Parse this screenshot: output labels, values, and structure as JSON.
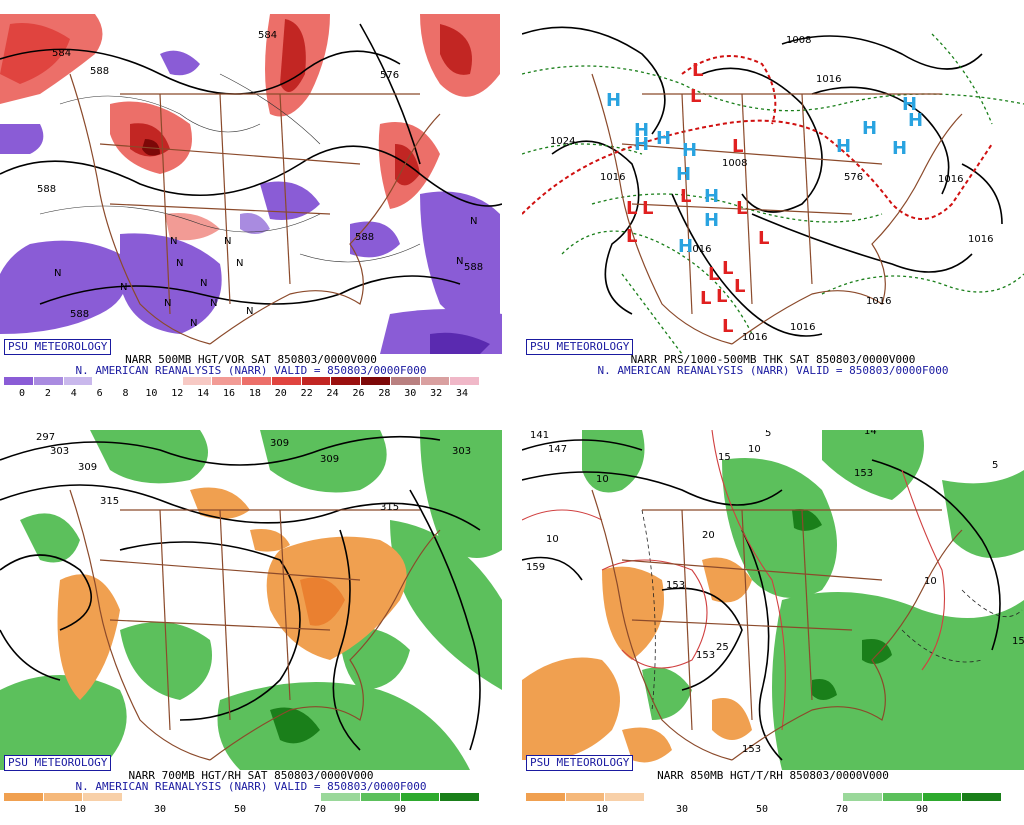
{
  "badge": "PSU METEOROLOGY",
  "panels": [
    {
      "title": "NARR 500MB HGT/VOR SAT 850803/0000V000",
      "subtitle": "N. AMERICAN REANALYSIS (NARR) VALID = 850803/0000F000",
      "colorbar": {
        "colors": [
          "#8a5cd6",
          "#a98be0",
          "#c9b8ec",
          "#ffffff",
          "#ffffff",
          "#ffffff",
          "#f7c9c4",
          "#f29b95",
          "#ec6f69",
          "#e0443f",
          "#c22623",
          "#9b100f",
          "#7d0808",
          "#b98080",
          "#d9a0a0",
          "#f0b8c8"
        ],
        "labels": [
          "0",
          "2",
          "4",
          "6",
          "8",
          "10",
          "12",
          "14",
          "16",
          "18",
          "20",
          "22",
          "24",
          "26",
          "28",
          "30",
          "32",
          "34"
        ]
      },
      "contour_labels": [
        "584",
        "584",
        "576",
        "588",
        "588",
        "588",
        "588",
        "588"
      ],
      "marks": [
        "N",
        "N",
        "N",
        "N",
        "N",
        "N",
        "N",
        "N",
        "N",
        "N",
        "N",
        "N",
        "N"
      ]
    },
    {
      "title": "NARR PRS/1000-500MB THK SAT 850803/0000V000",
      "subtitle": "N. AMERICAN REANALYSIS (NARR) VALID = 850803/0000F000",
      "contour_labels": [
        "1008",
        "1016",
        "1024",
        "1016",
        "1008",
        "1016",
        "1016",
        "1016",
        "1016",
        "1016",
        "1016",
        "576"
      ],
      "highs": [
        "H",
        "H",
        "H",
        "H",
        "H",
        "H",
        "H",
        "H",
        "H",
        "H",
        "H",
        "H",
        "H",
        "H"
      ],
      "lows": [
        "L",
        "L",
        "L",
        "L",
        "L",
        "L",
        "L",
        "L",
        "L",
        "L",
        "L",
        "L",
        "L",
        "L",
        "L"
      ]
    },
    {
      "title": "NARR 700MB HGT/RH SAT 850803/0000V000",
      "subtitle": "N. AMERICAN REANALYSIS (NARR) VALID = 850803/0000F000",
      "colorbar": {
        "colors": [
          "#f0a050",
          "#f5b87a",
          "#f8d0a8",
          "#ffffff",
          "#ffffff",
          "#ffffff",
          "#ffffff",
          "#ffffff",
          "#9ad89a",
          "#5cc05c",
          "#2eaa2e",
          "#1a7f1a"
        ],
        "labels": [
          "10",
          "30",
          "50",
          "70",
          "90"
        ]
      },
      "contour_labels": [
        "297",
        "303",
        "309",
        "309",
        "309",
        "303",
        "315",
        "315"
      ]
    },
    {
      "title": "NARR 850MB HGT/T/RH 850803/0000V000",
      "subtitle": "",
      "colorbar": {
        "colors": [
          "#f0a050",
          "#f5b87a",
          "#f8d0a8",
          "#ffffff",
          "#ffffff",
          "#ffffff",
          "#ffffff",
          "#ffffff",
          "#9ad89a",
          "#5cc05c",
          "#2eaa2e",
          "#1a7f1a"
        ],
        "labels": [
          "10",
          "30",
          "50",
          "70",
          "90"
        ]
      },
      "contour_labels": [
        "141",
        "147",
        "153",
        "153",
        "159",
        "153",
        "153",
        "14"
      ],
      "temp_labels": [
        "5",
        "15",
        "10",
        "10",
        "20",
        "10",
        "5",
        "15",
        "25",
        "10"
      ]
    }
  ]
}
